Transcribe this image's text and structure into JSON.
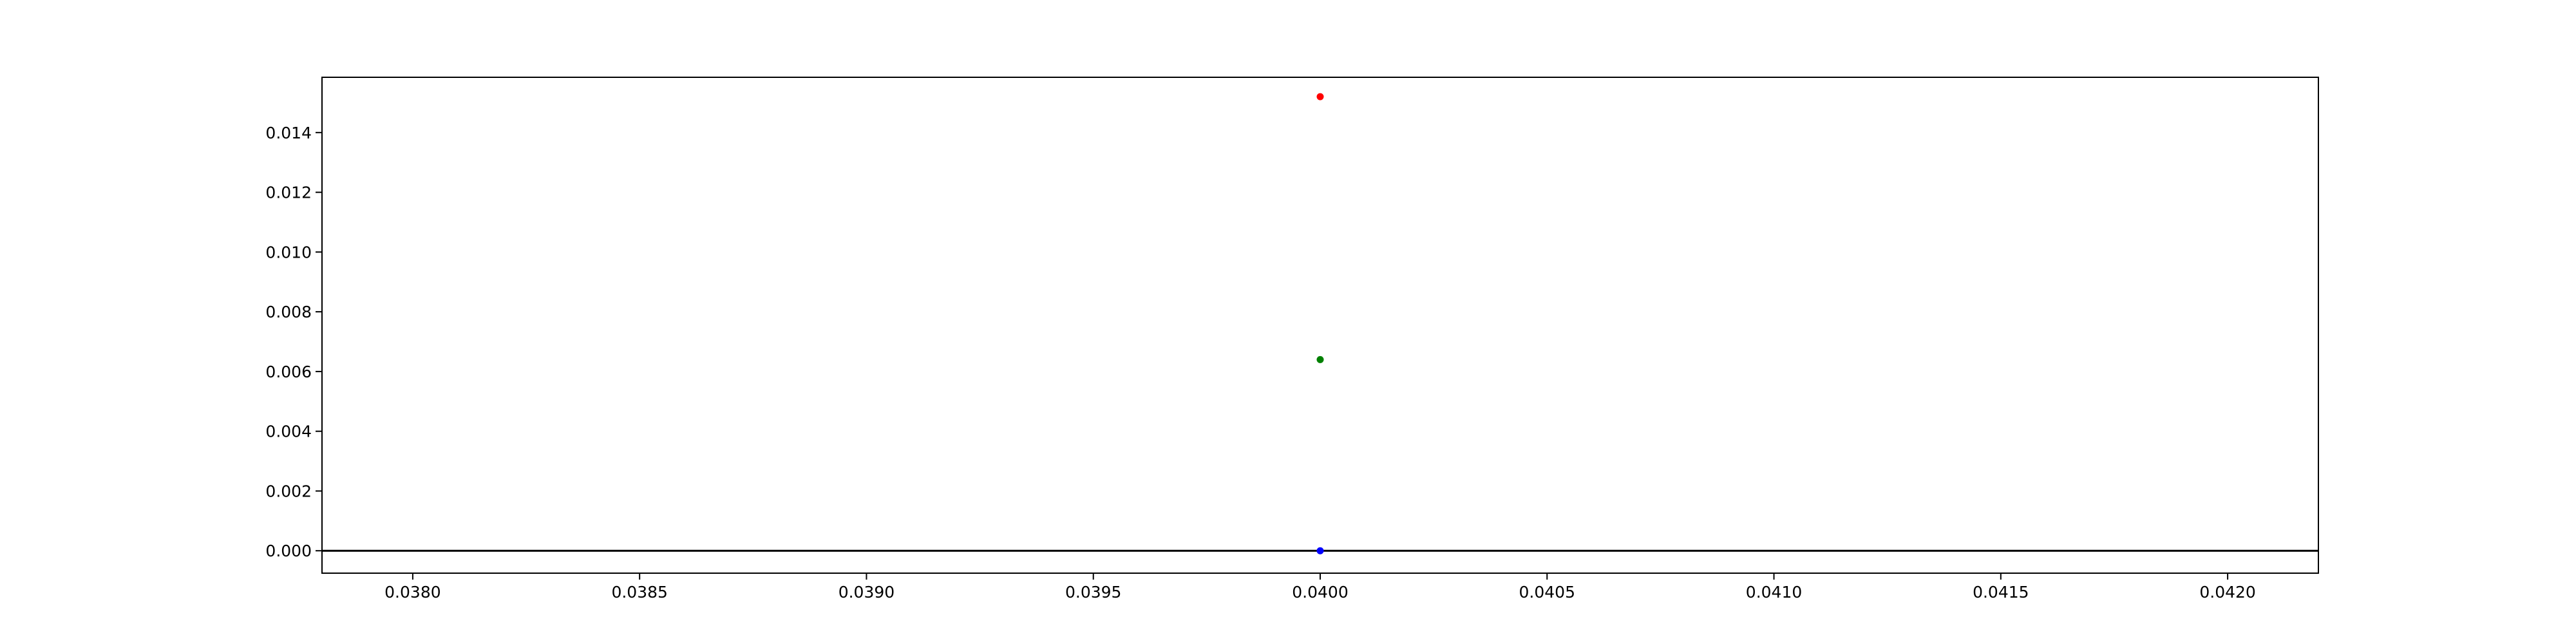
{
  "chart_data": {
    "type": "scatter",
    "title": "",
    "xlabel": "",
    "ylabel": "",
    "xlim": [
      0.0378,
      0.0422
    ],
    "ylim": [
      -0.00075,
      0.01585
    ],
    "x_ticks": [
      "0.0380",
      "0.0385",
      "0.0390",
      "0.0395",
      "0.0400",
      "0.0405",
      "0.0410",
      "0.0415",
      "0.0420"
    ],
    "y_ticks": [
      "0.000",
      "0.002",
      "0.004",
      "0.006",
      "0.008",
      "0.010",
      "0.012",
      "0.014"
    ],
    "grid": false,
    "legend": "none",
    "reference_lines": [
      {
        "orientation": "horizontal",
        "y": 0.0,
        "color": "#000000"
      }
    ],
    "points": [
      {
        "x": 0.04,
        "y": 0.0152,
        "color": "#ff0000"
      },
      {
        "x": 0.04,
        "y": 0.0064,
        "color": "#008000"
      },
      {
        "x": 0.04,
        "y": 0.0,
        "color": "#0000ff"
      }
    ]
  }
}
